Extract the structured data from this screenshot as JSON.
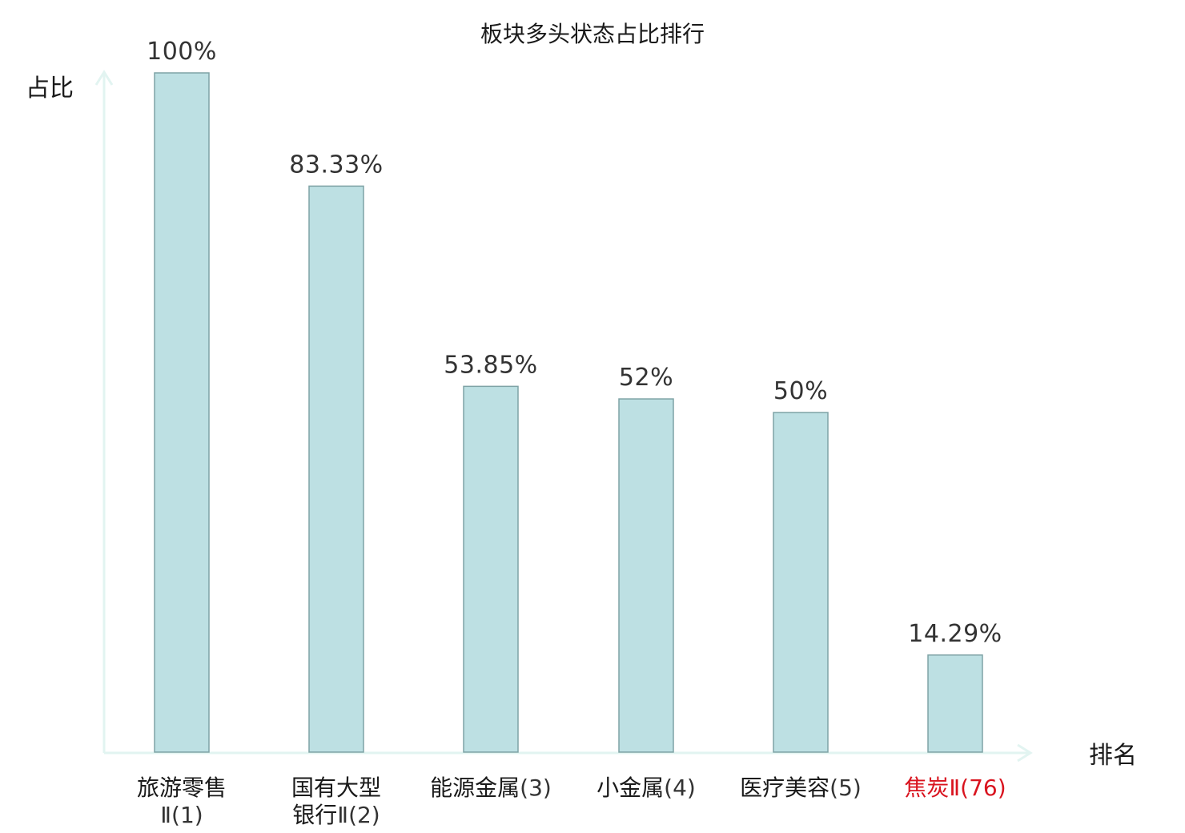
{
  "chart_data": {
    "type": "bar",
    "title": "板块多头状态占比排行",
    "ylabel": "占比",
    "xlabel": "排名",
    "ylim": [
      0,
      100
    ],
    "grid": false,
    "categories": [
      {
        "lines": [
          {
            "main": "旅游零售",
            "rank": ""
          },
          {
            "main": "",
            "rank": "Ⅱ(1)"
          }
        ],
        "highlight": false
      },
      {
        "lines": [
          {
            "main": "国有大型",
            "rank": ""
          },
          {
            "main": "银行",
            "rank": "Ⅱ(2)"
          }
        ],
        "highlight": false
      },
      {
        "lines": [
          {
            "main": "能源金属",
            "rank": "(3)"
          }
        ],
        "highlight": false
      },
      {
        "lines": [
          {
            "main": "小金属",
            "rank": "(4)"
          }
        ],
        "highlight": false
      },
      {
        "lines": [
          {
            "main": "医疗美容",
            "rank": "(5)"
          }
        ],
        "highlight": false
      },
      {
        "lines": [
          {
            "main": "焦炭",
            "rank": "Ⅱ(76)"
          }
        ],
        "highlight": true
      }
    ],
    "values": [
      100,
      83.33,
      53.85,
      52,
      50,
      14.29
    ],
    "value_labels": [
      "100%",
      "83.33%",
      "53.85%",
      "52%",
      "50%",
      "14.29%"
    ],
    "colors": {
      "bar_fill": "#bde0e3",
      "bar_stroke": "#7fa3a6",
      "axis": "#e2f4f1",
      "highlight_text": "#d9141f",
      "text": "#1a1a1a"
    }
  }
}
